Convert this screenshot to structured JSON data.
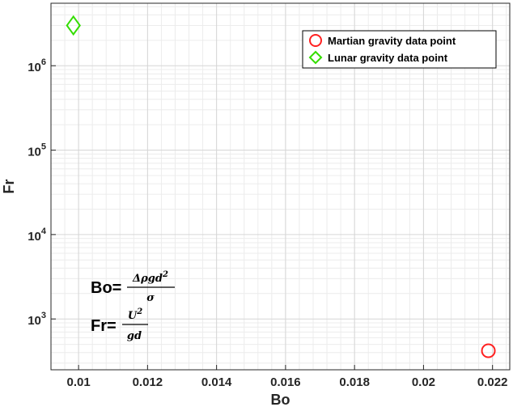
{
  "chart_data": {
    "type": "scatter",
    "xlabel": "Bo",
    "ylabel": "Fr",
    "xlim": [
      0.0092,
      0.0225
    ],
    "ylim": [
      250,
      5500000
    ],
    "yscale": "log",
    "grid": true,
    "minor_grid": true,
    "xticks": [
      0.01,
      0.012,
      0.014,
      0.016,
      0.018,
      0.02,
      0.022
    ],
    "xtick_labels": [
      "0.01",
      "0.012",
      "0.014",
      "0.016",
      "0.018",
      "0.02",
      "0.022"
    ],
    "yticks": [
      1000,
      10000,
      100000,
      1000000
    ],
    "ytick_labels": [
      {
        "base": "10",
        "exp": "3"
      },
      {
        "base": "10",
        "exp": "4"
      },
      {
        "base": "10",
        "exp": "5"
      },
      {
        "base": "10",
        "exp": "6"
      }
    ],
    "legend_position": "top-right",
    "series": [
      {
        "name": "Martian gravity data point",
        "marker": "circle",
        "color": "#ff2020",
        "x": [
          0.02188
        ],
        "y": [
          420
        ]
      },
      {
        "name": "Lunar gravity data point",
        "marker": "diamond",
        "color": "#33dd00",
        "x": [
          0.00985
        ],
        "y": [
          3000000
        ]
      }
    ],
    "annotations": {
      "bo_lhs": "Bo=",
      "bo_num": "Δρgd",
      "bo_num_exp": "2",
      "bo_den": "σ",
      "fr_lhs": "Fr=",
      "fr_num": "U",
      "fr_num_exp": "2",
      "fr_den": "gd"
    }
  }
}
